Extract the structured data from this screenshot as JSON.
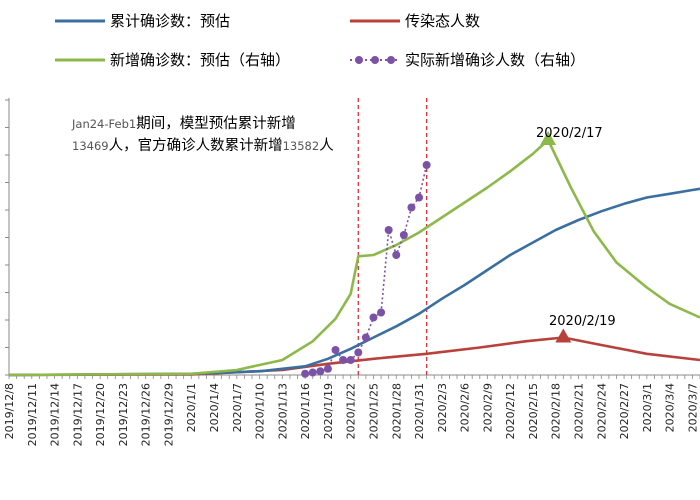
{
  "chart_data": {
    "type": "line",
    "legend": {
      "placement": "top",
      "items": [
        {
          "key": "cumulative",
          "label": "累计确诊数：预估",
          "color": "#3a6fa0",
          "style": "line"
        },
        {
          "key": "infectious",
          "label": "传染态人数",
          "color": "#b8413b",
          "style": "line"
        },
        {
          "key": "new_est",
          "label": "新增确诊数：预估（右轴）",
          "color": "#8db84a",
          "style": "line"
        },
        {
          "key": "new_actual",
          "label": "实际新增确诊人数（右轴）",
          "color": "#7b52a5",
          "style": "dotted-markers"
        }
      ]
    },
    "x_tick_labels": [
      "2019/12/8",
      "2019/12/11",
      "2019/12/14",
      "2019/12/17",
      "2019/12/20",
      "2019/12/23",
      "2019/12/26",
      "2019/12/29",
      "2020/1/1",
      "2020/1/4",
      "2020/1/7",
      "2020/1/10",
      "2020/1/13",
      "2020/1/16",
      "2020/1/19",
      "2020/1/22",
      "2020/1/25",
      "2020/1/28",
      "2020/1/31",
      "2020/2/3",
      "2020/2/6",
      "2020/2/9",
      "2020/2/12",
      "2020/2/15",
      "2020/2/18",
      "2020/2/21",
      "2020/2/24",
      "2020/2/27",
      "2020/3/1",
      "2020/3/4",
      "2020/3/7"
    ],
    "x_axis": {
      "start": "2019/12/8",
      "end": "2020/3/8",
      "tick_step_days": 3
    },
    "grid": false,
    "vertical_markers": [
      "2020/1/23",
      "2020/2/1"
    ],
    "annotations": {
      "text_prefix": "Jan24-Feb1",
      "text_line1": "期间，模型预估累计新增",
      "text_line2_num1": "13469",
      "text_line2_mid": "人，官方确诊人数累计新增",
      "text_line2_num2": "13582",
      "text_line2_end": "人",
      "peak_new_label": "2020/2/17",
      "peak_infectious_label": "2020/2/19"
    },
    "series": {
      "cumulative": [
        {
          "x": "2019/12/8",
          "y": 0
        },
        {
          "x": "2020/1/1",
          "y": 0.01
        },
        {
          "x": "2020/1/10",
          "y": 0.03
        },
        {
          "x": "2020/1/16",
          "y": 0.07
        },
        {
          "x": "2020/1/19",
          "y": 0.13
        },
        {
          "x": "2020/1/22",
          "y": 0.21
        },
        {
          "x": "2020/1/25",
          "y": 0.3
        },
        {
          "x": "2020/1/28",
          "y": 0.39
        },
        {
          "x": "2020/1/31",
          "y": 0.49
        },
        {
          "x": "2020/2/3",
          "y": 0.61
        },
        {
          "x": "2020/2/6",
          "y": 0.72
        },
        {
          "x": "2020/2/9",
          "y": 0.84
        },
        {
          "x": "2020/2/12",
          "y": 0.96
        },
        {
          "x": "2020/2/15",
          "y": 1.06
        },
        {
          "x": "2020/2/18",
          "y": 1.16
        },
        {
          "x": "2020/2/21",
          "y": 1.24
        },
        {
          "x": "2020/2/24",
          "y": 1.31
        },
        {
          "x": "2020/2/27",
          "y": 1.37
        },
        {
          "x": "2020/3/1",
          "y": 1.42
        },
        {
          "x": "2020/3/4",
          "y": 1.45
        },
        {
          "x": "2020/3/7",
          "y": 1.48
        },
        {
          "x": "2020/3/8",
          "y": 1.49
        }
      ],
      "infectious": [
        {
          "x": "2019/12/8",
          "y": 0
        },
        {
          "x": "2020/1/1",
          "y": 0.005
        },
        {
          "x": "2020/1/13",
          "y": 0.04
        },
        {
          "x": "2020/1/19",
          "y": 0.09
        },
        {
          "x": "2020/1/25",
          "y": 0.13
        },
        {
          "x": "2020/2/1",
          "y": 0.17
        },
        {
          "x": "2020/2/8",
          "y": 0.22
        },
        {
          "x": "2020/2/14",
          "y": 0.27
        },
        {
          "x": "2020/2/19",
          "y": 0.3
        },
        {
          "x": "2020/2/24",
          "y": 0.24
        },
        {
          "x": "2020/3/1",
          "y": 0.17
        },
        {
          "x": "2020/3/8",
          "y": 0.12
        }
      ],
      "new_est": [
        {
          "x": "2019/12/8",
          "y": 0
        },
        {
          "x": "2020/1/1",
          "y": 0.01
        },
        {
          "x": "2020/1/7",
          "y": 0.04
        },
        {
          "x": "2020/1/13",
          "y": 0.12
        },
        {
          "x": "2020/1/17",
          "y": 0.27
        },
        {
          "x": "2020/1/20",
          "y": 0.45
        },
        {
          "x": "2020/1/22",
          "y": 0.65
        },
        {
          "x": "2020/1/23",
          "y": 0.95
        },
        {
          "x": "2020/1/25",
          "y": 0.96
        },
        {
          "x": "2020/1/28",
          "y": 1.04
        },
        {
          "x": "2020/1/31",
          "y": 1.14
        },
        {
          "x": "2020/2/3",
          "y": 1.26
        },
        {
          "x": "2020/2/6",
          "y": 1.38
        },
        {
          "x": "2020/2/9",
          "y": 1.5
        },
        {
          "x": "2020/2/12",
          "y": 1.63
        },
        {
          "x": "2020/2/15",
          "y": 1.77
        },
        {
          "x": "2020/2/17",
          "y": 1.88
        },
        {
          "x": "2020/2/20",
          "y": 1.5
        },
        {
          "x": "2020/2/23",
          "y": 1.15
        },
        {
          "x": "2020/2/26",
          "y": 0.9
        },
        {
          "x": "2020/3/1",
          "y": 0.7
        },
        {
          "x": "2020/3/4",
          "y": 0.57
        },
        {
          "x": "2020/3/8",
          "y": 0.46
        }
      ],
      "new_actual": [
        {
          "x": "2020/1/16",
          "y": 0.01
        },
        {
          "x": "2020/1/17",
          "y": 0.02
        },
        {
          "x": "2020/1/18",
          "y": 0.03
        },
        {
          "x": "2020/1/19",
          "y": 0.05
        },
        {
          "x": "2020/1/20",
          "y": 0.2
        },
        {
          "x": "2020/1/21",
          "y": 0.12
        },
        {
          "x": "2020/1/22",
          "y": 0.12
        },
        {
          "x": "2020/1/23",
          "y": 0.18
        },
        {
          "x": "2020/1/24",
          "y": 0.3
        },
        {
          "x": "2020/1/25",
          "y": 0.46
        },
        {
          "x": "2020/1/26",
          "y": 0.5
        },
        {
          "x": "2020/1/27",
          "y": 1.16
        },
        {
          "x": "2020/1/28",
          "y": 0.96
        },
        {
          "x": "2020/1/29",
          "y": 1.12
        },
        {
          "x": "2020/1/30",
          "y": 1.34
        },
        {
          "x": "2020/1/31",
          "y": 1.42
        },
        {
          "x": "2020/2/1",
          "y": 1.68
        }
      ]
    },
    "y_range": [
      0,
      2.2
    ]
  }
}
